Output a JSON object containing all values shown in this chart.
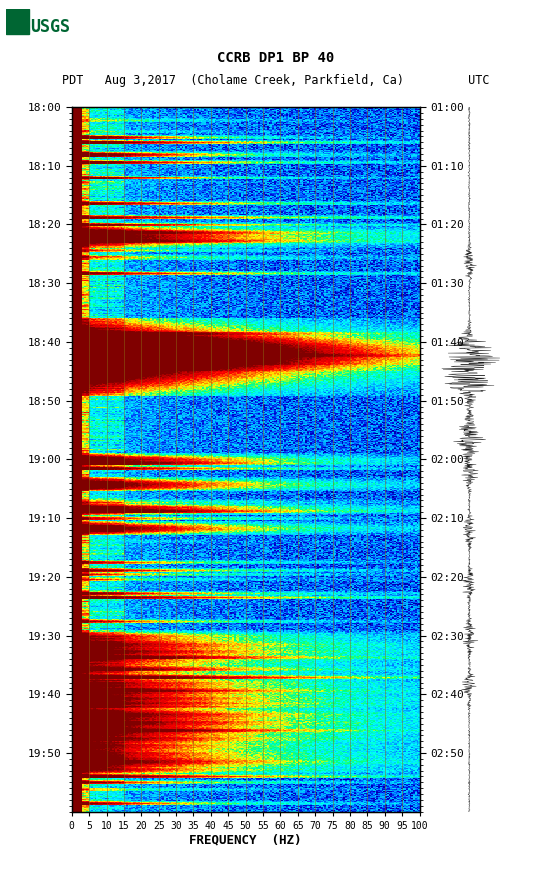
{
  "title_line1": "CCRB DP1 BP 40",
  "title_line2": "PDT   Aug 3,2017  (Cholame Creek, Parkfield, Ca)         UTC",
  "xlabel": "FREQUENCY  (HZ)",
  "left_time_labels": [
    "18:00",
    "18:10",
    "18:20",
    "18:30",
    "18:40",
    "18:50",
    "19:00",
    "19:10",
    "19:20",
    "19:30",
    "19:40",
    "19:50"
  ],
  "right_time_labels": [
    "01:00",
    "01:10",
    "01:20",
    "01:30",
    "01:40",
    "01:50",
    "02:00",
    "02:10",
    "02:20",
    "02:30",
    "02:40",
    "02:50"
  ],
  "freq_ticks": [
    0,
    5,
    10,
    15,
    20,
    25,
    30,
    35,
    40,
    45,
    50,
    55,
    60,
    65,
    70,
    75,
    80,
    85,
    90,
    95,
    100
  ],
  "freq_gridlines": [
    5,
    10,
    15,
    20,
    25,
    30,
    35,
    40,
    45,
    50,
    55,
    60,
    65,
    70,
    75,
    80,
    85,
    90,
    95,
    100
  ],
  "n_time": 720,
  "n_freq": 200,
  "bg_color": "#000080",
  "fig_bg": "#ffffff",
  "usgs_green": "#006633"
}
